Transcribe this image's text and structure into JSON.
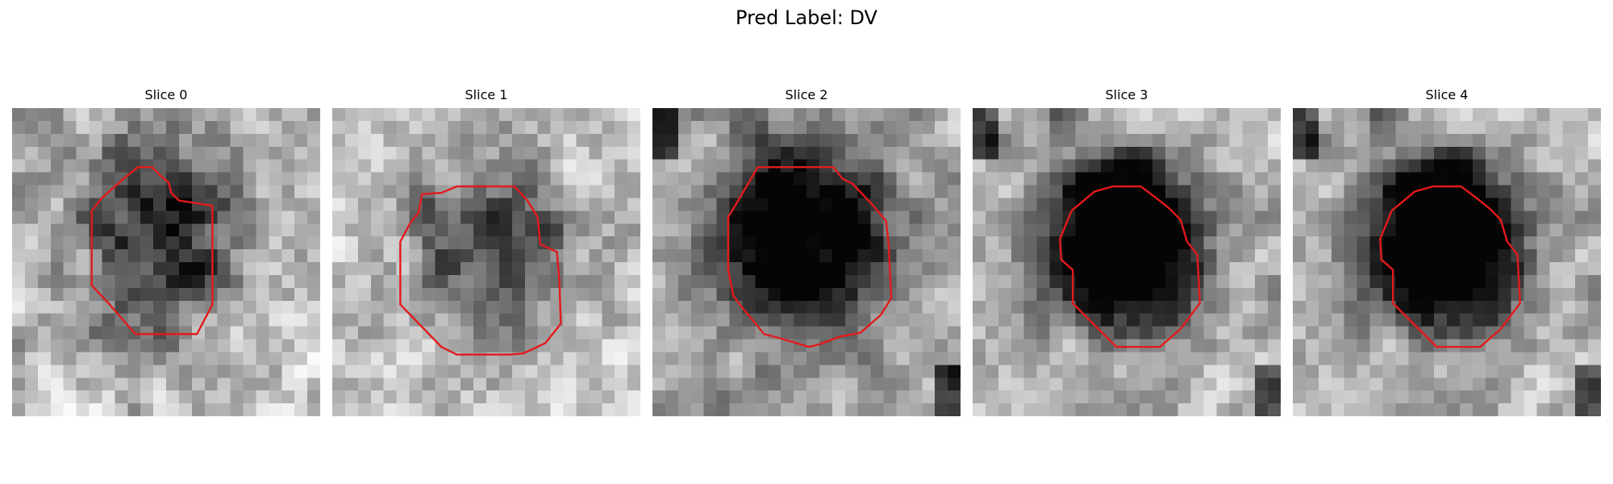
{
  "figure": {
    "title": "Pred Label: DV"
  },
  "contour_color": "#e31a1c",
  "panels": [
    {
      "title": "Slice 0"
    },
    {
      "title": "Slice 1"
    },
    {
      "title": "Slice 2"
    },
    {
      "title": "Slice 3"
    },
    {
      "title": "Slice 4"
    }
  ]
}
